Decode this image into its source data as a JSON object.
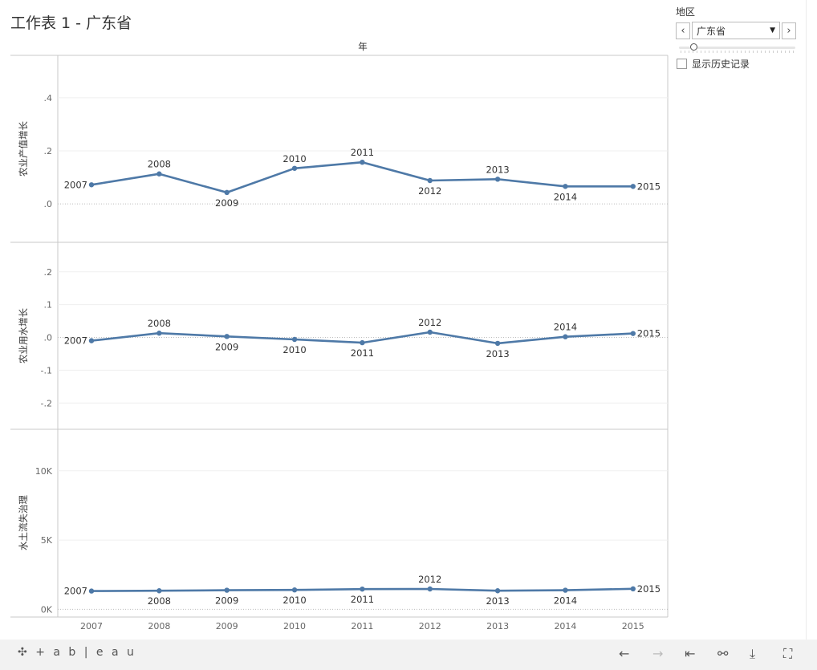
{
  "title": "工作表 1 - 广东省",
  "chart_data": {
    "type": "line",
    "column_header": "年",
    "x": [
      "2007",
      "2008",
      "2009",
      "2010",
      "2011",
      "2012",
      "2013",
      "2014",
      "2015"
    ],
    "series_color": "#4e79a7",
    "panels": [
      {
        "name": "农业产值增长",
        "ylabel": "农业产值增长",
        "ylim": [
          -0.145,
          0.56
        ],
        "ticks": [
          0.0,
          0.2,
          0.4
        ],
        "tick_labels": [
          ".0",
          ".2",
          ".4"
        ],
        "values": [
          0.072,
          0.113,
          0.043,
          0.134,
          0.157,
          0.088,
          0.093,
          0.066,
          0.066
        ],
        "label_pos": [
          "left",
          "above",
          "below",
          "above",
          "above",
          "below",
          "above",
          "below",
          "right"
        ]
      },
      {
        "name": "农业用水增长",
        "ylabel": "农业用水增长",
        "ylim": [
          -0.28,
          0.29
        ],
        "ticks": [
          -0.2,
          -0.1,
          0.0,
          0.1,
          0.2
        ],
        "tick_labels": [
          "-.2",
          "-.1",
          ".0",
          ".1",
          ".2"
        ],
        "values": [
          -0.01,
          0.013,
          0.003,
          -0.006,
          -0.016,
          0.016,
          -0.018,
          0.002,
          0.012
        ],
        "label_pos": [
          "left",
          "above",
          "below",
          "below",
          "below",
          "above",
          "below",
          "above",
          "right"
        ]
      },
      {
        "name": "水土流失治理",
        "ylabel": "水土流失治理",
        "ylim": [
          -500,
          13000
        ],
        "ticks": [
          0,
          5000,
          10000
        ],
        "tick_labels": [
          "0K",
          "5K",
          "10K"
        ],
        "values": [
          1320,
          1340,
          1380,
          1400,
          1460,
          1470,
          1340,
          1380,
          1480
        ],
        "label_pos": [
          "left",
          "below",
          "below",
          "below",
          "below",
          "above",
          "below",
          "below",
          "right"
        ]
      }
    ]
  },
  "filter": {
    "label": "地区",
    "selected": "广东省",
    "prev_icon": "chevron-left-icon",
    "next_icon": "chevron-right-icon",
    "prev_glyph": "‹",
    "next_glyph": "›",
    "caret_glyph": "▼",
    "history_label": "显示历史记录",
    "history_checked": false
  },
  "footer": {
    "logo": "+ a b | e a u",
    "logo_mark": "✣",
    "undo": "←",
    "redo": "→",
    "revert": "⇤",
    "share": "⚯",
    "download": "⤓",
    "fullscreen": "⛶"
  }
}
